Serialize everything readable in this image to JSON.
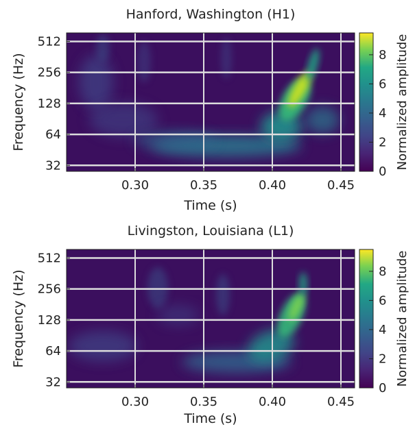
{
  "chart_data": [
    {
      "type": "heatmap",
      "title": "Hanford, Washington (H1)",
      "xlabel": "Time (s)",
      "ylabel": "Frequency (Hz)",
      "x_ticks": [
        "0.30",
        "0.35",
        "0.40",
        "0.45"
      ],
      "x_tick_values": [
        0.3,
        0.35,
        0.4,
        0.45
      ],
      "xlim": [
        0.25,
        0.46
      ],
      "y_ticks": [
        "32",
        "64",
        "128",
        "256",
        "512"
      ],
      "y_tick_values": [
        32,
        64,
        128,
        256,
        512
      ],
      "ylim": [
        28,
        620
      ],
      "y_scale": "log2",
      "grid": true,
      "colormap": "viridis",
      "colorbar": {
        "label": "Normalized amplitude",
        "ticks": [
          "0",
          "2",
          "4",
          "6",
          "8"
        ],
        "tick_values": [
          0,
          2,
          4,
          6,
          8
        ],
        "range": [
          0,
          9.5
        ]
      },
      "peak": {
        "t": 0.422,
        "f": 120,
        "value": 9.0
      },
      "chirp_track": [
        {
          "t": 0.3,
          "f": 45
        },
        {
          "t": 0.35,
          "f": 48
        },
        {
          "t": 0.38,
          "f": 58
        },
        {
          "t": 0.4,
          "f": 75
        },
        {
          "t": 0.41,
          "f": 95
        },
        {
          "t": 0.42,
          "f": 140
        },
        {
          "t": 0.43,
          "f": 230
        },
        {
          "t": 0.435,
          "f": 300
        }
      ]
    },
    {
      "type": "heatmap",
      "title": "Livingston, Louisiana (L1)",
      "xlabel": "Time (s)",
      "ylabel": "Frequency (Hz)",
      "x_ticks": [
        "0.30",
        "0.35",
        "0.40",
        "0.45"
      ],
      "x_tick_values": [
        0.3,
        0.35,
        0.4,
        0.45
      ],
      "xlim": [
        0.25,
        0.46
      ],
      "y_ticks": [
        "32",
        "64",
        "128",
        "256",
        "512"
      ],
      "y_tick_values": [
        32,
        64,
        128,
        256,
        512
      ],
      "ylim": [
        28,
        620
      ],
      "y_scale": "log2",
      "grid": true,
      "colormap": "viridis",
      "colorbar": {
        "label": "Normalized amplitude",
        "ticks": [
          "0",
          "2",
          "4",
          "6",
          "8"
        ],
        "tick_values": [
          0,
          2,
          4,
          6,
          8
        ],
        "range": [
          0,
          9.5
        ]
      },
      "peak": {
        "t": 0.42,
        "f": 150,
        "value": 7.0
      },
      "chirp_track": [
        {
          "t": 0.34,
          "f": 42
        },
        {
          "t": 0.37,
          "f": 48
        },
        {
          "t": 0.39,
          "f": 60
        },
        {
          "t": 0.4,
          "f": 75
        },
        {
          "t": 0.41,
          "f": 100
        },
        {
          "t": 0.42,
          "f": 150
        },
        {
          "t": 0.43,
          "f": 260
        }
      ]
    }
  ],
  "colors": {
    "viridis_low": "#440154",
    "viridis_mid": "#21918c",
    "viridis_high": "#fde725",
    "grid": "#dddddd"
  }
}
